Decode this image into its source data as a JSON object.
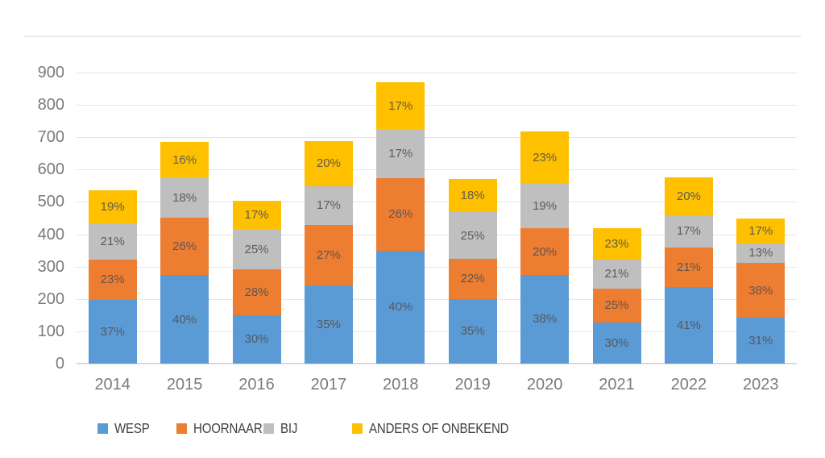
{
  "chart_data": {
    "type": "bar",
    "stacked": true,
    "title": "",
    "categories": [
      "2014",
      "2015",
      "2016",
      "2017",
      "2018",
      "2019",
      "2020",
      "2021",
      "2022",
      "2023"
    ],
    "series": [
      {
        "name": "WESP",
        "color": "#5B9BD5",
        "values": [
          198,
          274,
          150,
          242,
          350,
          200,
          275,
          127,
          238,
          141
        ],
        "labels": [
          "37%",
          "40%",
          "30%",
          "35%",
          "40%",
          "35%",
          "38%",
          "30%",
          "41%",
          "31%"
        ]
      },
      {
        "name": "HOORNAAR",
        "color": "#ED7D31",
        "values": [
          123,
          178,
          141,
          187,
          223,
          124,
          143,
          106,
          122,
          171
        ],
        "labels": [
          "23%",
          "26%",
          "28%",
          "27%",
          "26%",
          "22%",
          "20%",
          "25%",
          "21%",
          "38%"
        ]
      },
      {
        "name": "BIJ",
        "color": "#BFBFBF",
        "values": [
          112,
          123,
          126,
          120,
          152,
          144,
          137,
          89,
          99,
          60
        ],
        "labels": [
          "21%",
          "18%",
          "25%",
          "17%",
          "17%",
          "25%",
          "19%",
          "21%",
          "17%",
          "13%"
        ]
      },
      {
        "name": "ANDERS OF ONBEKEND",
        "color": "#FFC000",
        "values": [
          102,
          110,
          86,
          139,
          145,
          103,
          163,
          98,
          117,
          78
        ],
        "labels": [
          "19%",
          "16%",
          "17%",
          "20%",
          "17%",
          "18%",
          "23%",
          "23%",
          "20%",
          "17%"
        ]
      }
    ],
    "totals": [
      535,
      685,
      503,
      688,
      870,
      571,
      718,
      420,
      576,
      450
    ],
    "y_axis": {
      "min": 0,
      "max": 900,
      "step": 100,
      "ticks": [
        "900",
        "800",
        "700",
        "600",
        "500",
        "400",
        "300",
        "200",
        "100",
        "0"
      ]
    },
    "xlabel": "",
    "ylabel": "",
    "gridlines": true,
    "legend_position": "bottom",
    "colors": {
      "gridline": "#E5E5E5",
      "axis_text": "#7B7B7B",
      "segment_label_text": "#595959",
      "legend_text": "#404040"
    }
  }
}
